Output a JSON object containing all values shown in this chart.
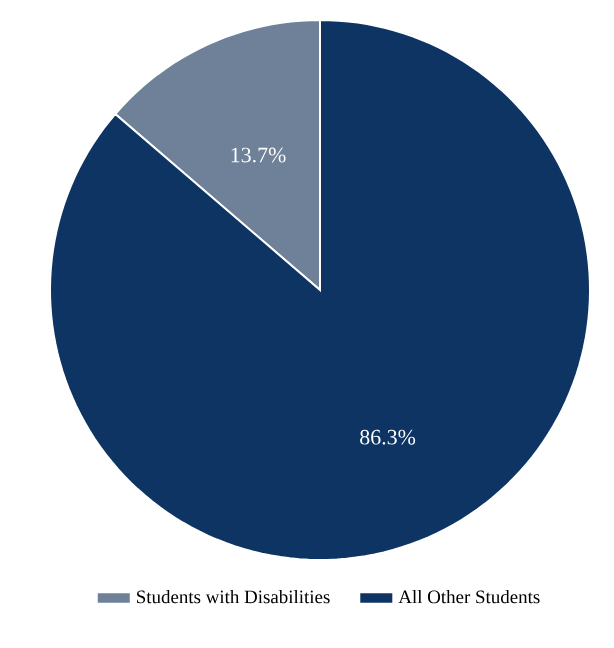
{
  "chart_data": {
    "type": "pie",
    "categories": [
      "Students with Disabilities",
      "All Other Students"
    ],
    "values": [
      13.7,
      86.3
    ],
    "colors": [
      "#6e8199",
      "#0d3463"
    ],
    "value_labels": [
      "13.7%",
      "86.3%"
    ],
    "legend": "bottom"
  }
}
